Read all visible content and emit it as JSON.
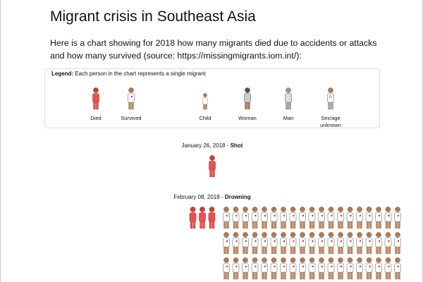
{
  "header": {
    "title": "Migrant crisis in Southeast Asia",
    "intro": "Here is a chart showing for 2018 how many migrants died due to accidents or attacks and how many survived (source: https://missingmigrants.iom.int/):"
  },
  "legend": {
    "label": "Legend:",
    "text": "Each person in the chart represents a single migrant",
    "items": [
      "Died",
      "Survived",
      "Child",
      "Woman",
      "Man",
      "Sex/age unknown"
    ]
  },
  "events": [
    {
      "date": "January 26, 2018",
      "separator": " - ",
      "cause": "Shot",
      "died": 1
    },
    {
      "date": "February 08, 2018",
      "separator": " - ",
      "cause": "Drowning",
      "died": 3,
      "survived": 57
    }
  ]
}
